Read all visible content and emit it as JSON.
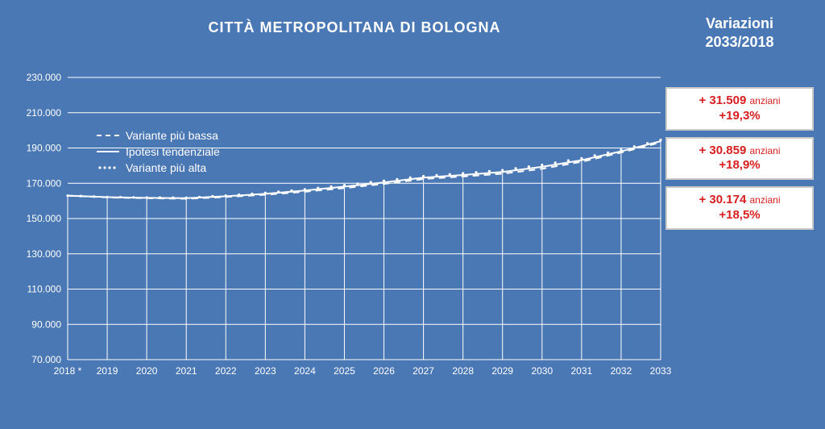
{
  "chart": {
    "title": "CITTÀ METROPOLITANA DI BOLOGNA",
    "y": {
      "min": 70000,
      "max": 230000,
      "step": 20000
    },
    "years": [
      2018,
      2019,
      2020,
      2021,
      2022,
      2023,
      2024,
      2025,
      2026,
      2027,
      2028,
      2029,
      2030,
      2031,
      2032,
      2033
    ],
    "firstYearSuffix": "*",
    "series": {
      "bassa": [
        163000,
        162000,
        161500,
        161200,
        162200,
        163500,
        165200,
        167300,
        169600,
        172400,
        173800,
        175400,
        178200,
        182200,
        187400,
        193174
      ],
      "tendenziale": [
        163000,
        162100,
        161700,
        161500,
        162600,
        164000,
        165900,
        168100,
        170500,
        173200,
        174700,
        176400,
        179300,
        183100,
        188100,
        193859
      ],
      "alta": [
        163000,
        162200,
        161900,
        161800,
        163000,
        164500,
        166500,
        168900,
        171400,
        174000,
        175600,
        177400,
        180400,
        184100,
        189000,
        194509
      ]
    },
    "legend": {
      "bassa": "Variante più bassa",
      "tendenziale": "Ipotesi tendenziale",
      "alta": "Variante più alta"
    },
    "colors": {
      "background": "#4a78b5",
      "line": "#ffffff",
      "text": "#ffffff"
    },
    "line_width": 2
  },
  "variations": {
    "title": "Variazioni\n2033/2018",
    "cards": [
      {
        "value": "+ 31.509",
        "unit": "anziani",
        "pct": "+19,3%"
      },
      {
        "value": "+ 30.859",
        "unit": "anziani",
        "pct": "+18,9%"
      },
      {
        "value": "+ 30.174",
        "unit": "anziani",
        "pct": "+18,5%"
      }
    ],
    "card_bg": "#ffffff",
    "card_text": "#d81e1e"
  }
}
